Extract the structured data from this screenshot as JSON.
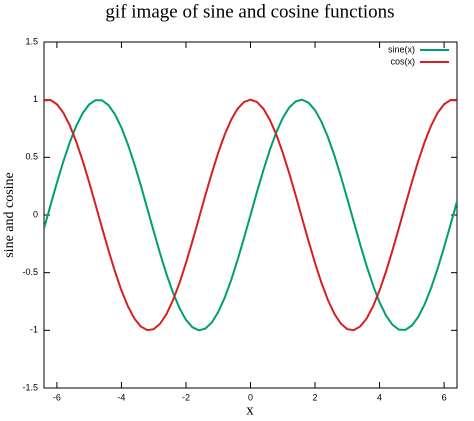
{
  "chart_data": {
    "type": "line",
    "title": "gif image of sine and cosine functions",
    "x_label": "x",
    "y_label": "sine and cosine",
    "x": [
      -6.4,
      -6.2,
      -6.0,
      -5.8,
      -5.6,
      -5.4,
      -5.2,
      -5.0,
      -4.8,
      -4.6,
      -4.4,
      -4.2,
      -4.0,
      -3.8,
      -3.6,
      -3.4,
      -3.2,
      -3.0,
      -2.8,
      -2.6,
      -2.4,
      -2.2,
      -2.0,
      -1.8,
      -1.6,
      -1.4,
      -1.2,
      -1.0,
      -0.8,
      -0.6,
      -0.4,
      -0.2,
      0,
      0.2,
      0.4,
      0.6,
      0.8,
      1.0,
      1.2,
      1.4,
      1.6,
      1.8,
      2.0,
      2.2,
      2.4,
      2.6,
      2.8,
      3.0,
      3.2,
      3.4,
      3.6,
      3.8,
      4.0,
      4.2,
      4.4,
      4.6,
      4.8,
      5.0,
      5.2,
      5.4,
      5.6,
      5.8,
      6.0,
      6.2,
      6.4
    ],
    "series": [
      {
        "name": "sine(x)",
        "color": "#009e73",
        "values": [
          -0.117,
          0.083,
          0.279,
          0.465,
          0.631,
          0.773,
          0.883,
          0.959,
          0.996,
          0.994,
          0.952,
          0.872,
          0.757,
          0.612,
          0.443,
          0.256,
          0.058,
          -0.141,
          -0.335,
          -0.516,
          -0.675,
          -0.808,
          -0.909,
          -0.974,
          -1.0,
          -0.985,
          -0.932,
          -0.841,
          -0.717,
          -0.565,
          -0.389,
          -0.199,
          0,
          0.199,
          0.389,
          0.565,
          0.717,
          0.841,
          0.932,
          0.985,
          1.0,
          0.974,
          0.909,
          0.808,
          0.675,
          0.516,
          0.335,
          0.141,
          -0.058,
          -0.256,
          -0.443,
          -0.612,
          -0.757,
          -0.872,
          -0.952,
          -0.994,
          -0.996,
          -0.959,
          -0.883,
          -0.773,
          -0.631,
          -0.465,
          -0.279,
          -0.083,
          0.117
        ]
      },
      {
        "name": "cos(x)",
        "color": "#d62020",
        "values": [
          0.993,
          0.997,
          0.96,
          0.886,
          0.776,
          0.635,
          0.469,
          0.284,
          0.087,
          -0.112,
          -0.307,
          -0.49,
          -0.654,
          -0.791,
          -0.897,
          -0.967,
          -0.998,
          -0.99,
          -0.942,
          -0.857,
          -0.737,
          -0.589,
          -0.416,
          -0.227,
          -0.029,
          0.17,
          0.362,
          0.54,
          0.697,
          0.825,
          0.921,
          0.98,
          1,
          0.98,
          0.921,
          0.825,
          0.697,
          0.54,
          0.362,
          0.17,
          -0.029,
          -0.227,
          -0.416,
          -0.589,
          -0.737,
          -0.857,
          -0.942,
          -0.99,
          -0.998,
          -0.967,
          -0.897,
          -0.791,
          -0.654,
          -0.49,
          -0.307,
          -0.112,
          0.087,
          0.284,
          0.469,
          0.635,
          0.776,
          0.886,
          0.96,
          0.997,
          0.993
        ]
      }
    ],
    "xlim": [
      -6.4,
      6.4
    ],
    "xticks": [
      -6,
      -4,
      -2,
      0,
      2,
      4,
      6
    ],
    "ylim": [
      -1.5,
      1.5
    ],
    "yticks": [
      -1.5,
      -1,
      -0.5,
      0,
      0.5,
      1,
      1.5
    ],
    "legend": "top-right"
  }
}
